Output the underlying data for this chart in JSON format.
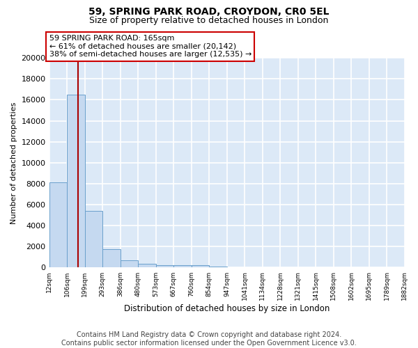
{
  "title1": "59, SPRING PARK ROAD, CROYDON, CR0 5EL",
  "title2": "Size of property relative to detached houses in London",
  "xlabel": "Distribution of detached houses by size in London",
  "ylabel": "Number of detached properties",
  "bar_values": [
    8100,
    16500,
    5400,
    1750,
    700,
    330,
    250,
    200,
    200,
    100,
    50,
    20,
    10,
    5,
    3,
    2,
    1,
    1,
    1,
    1
  ],
  "bin_edges": [
    12,
    106,
    199,
    293,
    386,
    480,
    573,
    667,
    760,
    854,
    947,
    1041,
    1134,
    1228,
    1321,
    1415,
    1508,
    1602,
    1695,
    1789,
    1882
  ],
  "tick_labels": [
    "12sqm",
    "106sqm",
    "199sqm",
    "293sqm",
    "386sqm",
    "480sqm",
    "573sqm",
    "667sqm",
    "760sqm",
    "854sqm",
    "947sqm",
    "1041sqm",
    "1134sqm",
    "1228sqm",
    "1321sqm",
    "1415sqm",
    "1508sqm",
    "1602sqm",
    "1695sqm",
    "1789sqm",
    "1882sqm"
  ],
  "bar_color": "#c5d9f0",
  "bar_edge_color": "#6aa0cc",
  "background_color": "#dce9f7",
  "grid_color": "#ffffff",
  "vline_x": 165,
  "vline_color": "#aa0000",
  "annotation_line1": "59 SPRING PARK ROAD: 165sqm",
  "annotation_line2": "← 61% of detached houses are smaller (20,142)",
  "annotation_line3": "38% of semi-detached houses are larger (12,535) →",
  "annotation_box_color": "#ffffff",
  "annotation_box_edge": "#cc0000",
  "ylim": [
    0,
    20000
  ],
  "yticks": [
    0,
    2000,
    4000,
    6000,
    8000,
    10000,
    12000,
    14000,
    16000,
    18000,
    20000
  ],
  "footer_line1": "Contains HM Land Registry data © Crown copyright and database right 2024.",
  "footer_line2": "Contains public sector information licensed under the Open Government Licence v3.0.",
  "title_fontsize": 10,
  "subtitle_fontsize": 9,
  "annot_fontsize": 8,
  "footer_fontsize": 7,
  "ylabel_fontsize": 8,
  "xlabel_fontsize": 8.5
}
